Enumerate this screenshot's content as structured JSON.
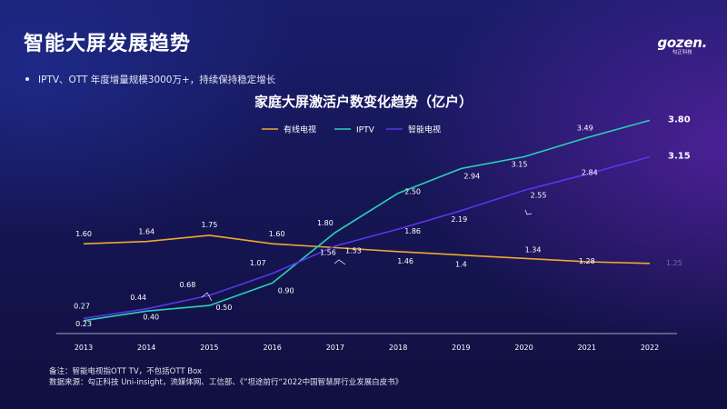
{
  "header": {
    "title": "智能大屏发展趋势",
    "logo_main": "gozen.",
    "logo_sub": "勾正科技"
  },
  "bullet": "IPTV、OTT 年度增量规模3000万+，持续保持稳定增长",
  "footnotes": {
    "note": "备注：智能电视指OTT TV，不包括OTT Box",
    "source": "数据来源：勾正科技 Uni-insight，流媒体网、工信部、《”坦途前行“2022中国智慧屏行业发展白皮书》"
  },
  "colors": {
    "cable": "#f0a830",
    "iptv": "#2ad1b8",
    "smart_tv": "#5a35f0"
  },
  "chart_data": {
    "type": "line",
    "title": "家庭大屏激活户数变化趋势（亿户）",
    "xlabel": "",
    "ylabel": "",
    "ylim": [
      0,
      4.0
    ],
    "grid": false,
    "legend_position": "top-left",
    "x": [
      "2013",
      "2014",
      "2015",
      "2016",
      "2017",
      "2018",
      "2019",
      "2020",
      "2021",
      "2022"
    ],
    "series": [
      {
        "name": "有线电视",
        "values": [
          1.6,
          1.64,
          1.75,
          1.6,
          1.53,
          1.46,
          1.4,
          1.34,
          1.28,
          1.25
        ],
        "labels": [
          "1.60",
          "1.64",
          "1.75",
          "1.60",
          "1.53",
          "1.46",
          "1.4",
          "1.34",
          "1.28",
          "1.25"
        ]
      },
      {
        "name": "IPTV",
        "values": [
          0.23,
          0.4,
          0.5,
          0.9,
          1.8,
          2.5,
          2.94,
          3.15,
          3.49,
          3.8
        ],
        "labels": [
          "0.23",
          "0.40",
          "0.50",
          "0.90",
          "1.80",
          "2.50",
          "2.94",
          "3.15",
          "3.49",
          "3.80"
        ]
      },
      {
        "name": "智能电视",
        "values": [
          0.27,
          0.44,
          0.68,
          1.07,
          1.56,
          1.86,
          2.19,
          2.55,
          2.84,
          3.15
        ],
        "labels": [
          "0.27",
          "0.44",
          "0.68",
          "1.07",
          "1.56",
          "1.86",
          "2.19",
          "2.55",
          "2.84",
          "3.15"
        ]
      }
    ]
  }
}
